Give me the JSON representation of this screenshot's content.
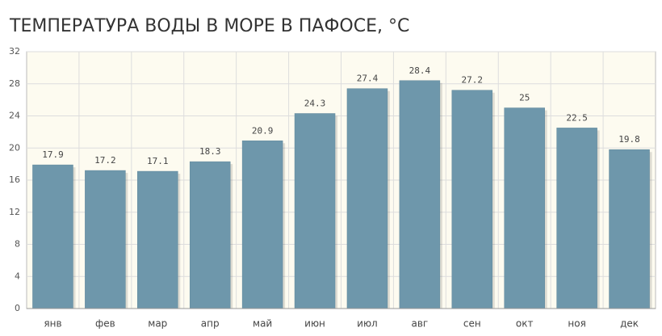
{
  "chart_data": {
    "type": "bar",
    "title": "ТЕМПЕРАТУРА ВОДЫ В МОРЕ В ПАФОСЕ, °C",
    "categories": [
      "янв",
      "фев",
      "мар",
      "апр",
      "май",
      "июн",
      "июл",
      "авг",
      "сен",
      "окт",
      "ноя",
      "дек"
    ],
    "values": [
      17.9,
      17.2,
      17.1,
      18.3,
      20.9,
      24.3,
      27.4,
      28.4,
      27.2,
      25,
      22.5,
      19.8
    ],
    "color": "#6e97ab",
    "ylim": [
      0,
      32
    ],
    "yticks": [
      0,
      4,
      8,
      12,
      16,
      20,
      24,
      28,
      32
    ],
    "grid": true
  }
}
